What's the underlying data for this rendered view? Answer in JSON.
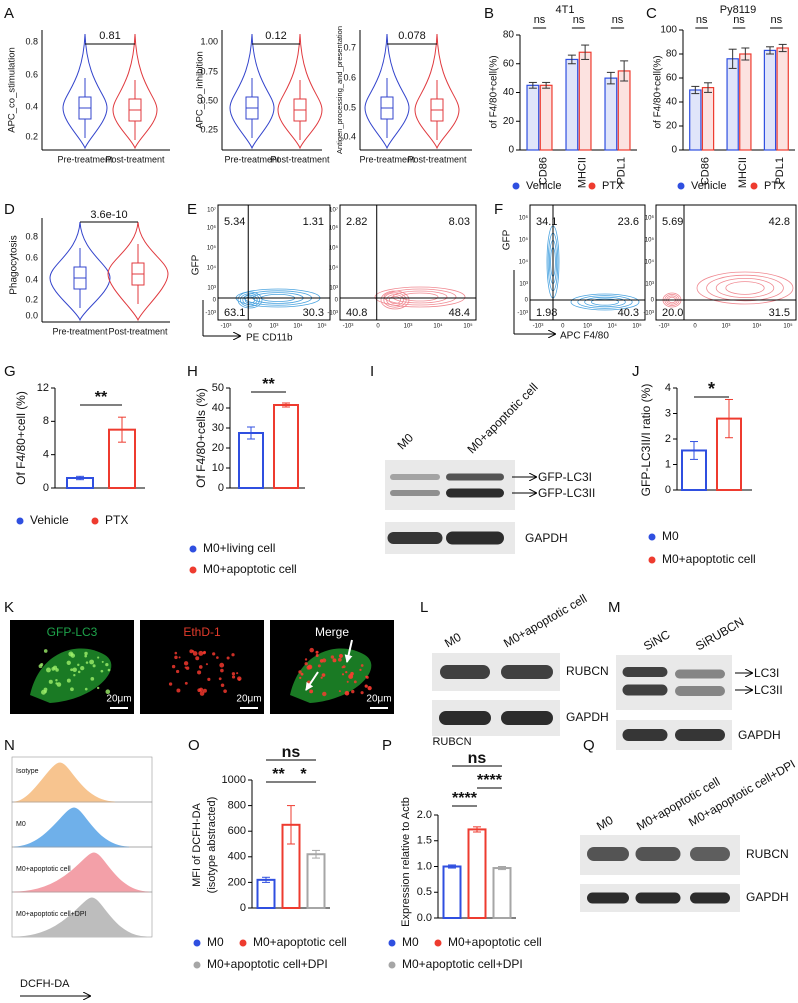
{
  "panel_a": {
    "letter": "A",
    "plots": [
      {
        "ylabel": "APC_co_stimulation",
        "yticks": [
          0.8,
          0.6,
          0.4,
          0.2
        ],
        "categories": [
          "Pre-treatment",
          "Post-treatment"
        ],
        "p_value": "0.81"
      },
      {
        "ylabel": "APC_co_inhibition",
        "yticks": [
          "1.00",
          "0.75",
          "0.50",
          "0.25"
        ],
        "categories": [
          "Pre-treatment",
          "Post-treatment"
        ],
        "p_value": "0.12"
      },
      {
        "ylabel": "Antigen_processing_and_presentation",
        "yticks": [
          0.7,
          0.6,
          0.5,
          0.4
        ],
        "categories": [
          "Pre-treatment",
          "Post-treatment"
        ],
        "p_value": "0.078"
      }
    ]
  },
  "panel_b": {
    "letter": "B",
    "title": "4T1",
    "ylabel": "of F4/80+cell(%)",
    "categories": [
      "CD86",
      "MHCII",
      "PDL1"
    ],
    "series": [
      {
        "name": "Vehicle",
        "color": "#2f4fe0",
        "values": [
          45,
          63,
          50
        ],
        "errors": [
          2,
          3,
          4
        ]
      },
      {
        "name": "PTX",
        "color": "#ee3b2f",
        "values": [
          45,
          68,
          55
        ],
        "errors": [
          2,
          5,
          7
        ]
      }
    ],
    "ylim": [
      0,
      80
    ],
    "yticks": [
      0,
      20,
      40,
      60,
      80
    ],
    "significance": [
      "ns",
      "ns",
      "ns"
    ]
  },
  "panel_c": {
    "letter": "C",
    "title": "Py8119",
    "ylabel": "of F4/80+cell(%)",
    "categories": [
      "CD86",
      "MHCII",
      "PDL1"
    ],
    "series": [
      {
        "name": "Vehicle",
        "color": "#2f4fe0",
        "values": [
          50,
          76,
          83
        ],
        "errors": [
          3,
          8,
          3
        ]
      },
      {
        "name": "PTX",
        "color": "#ee3b2f",
        "values": [
          52,
          80,
          85
        ],
        "errors": [
          4,
          5,
          3
        ]
      }
    ],
    "ylim": [
      0,
      100
    ],
    "yticks": [
      0,
      20,
      40,
      60,
      80,
      100
    ],
    "significance": [
      "ns",
      "ns",
      "ns"
    ]
  },
  "panel_d": {
    "letter": "D",
    "ylabel": "Phagocytosis",
    "yticks": [
      0.8,
      0.6,
      0.4,
      0.2,
      "0.0"
    ],
    "categories": [
      "Pre-treatment",
      "Post-treatment"
    ],
    "p_value": "3.6e-10"
  },
  "panel_e": {
    "letter": "E",
    "ylabel": "GFP",
    "xlabel": "PE CD11b",
    "yticks": [
      "10⁷",
      "10⁶",
      "10⁵",
      "10⁴",
      "10³",
      "0",
      "-10³"
    ],
    "xticks": [
      "-10³",
      "0",
      "10³",
      "10⁴",
      "10⁵"
    ],
    "plots": [
      {
        "quadrants": [
          5.34,
          1.31,
          63.1,
          30.3
        ]
      },
      {
        "quadrants": [
          2.82,
          8.03,
          40.8,
          48.4
        ]
      }
    ]
  },
  "panel_f": {
    "letter": "F",
    "ylabel": "GFP",
    "xlabel": "APC F4/80",
    "yticks": [
      "10⁶",
      "10⁵",
      "10⁴",
      "10³",
      "0",
      "-10³"
    ],
    "xticks": [
      "-10³",
      "0",
      "10³",
      "10⁴",
      "10⁵"
    ],
    "plots": [
      {
        "quadrants": [
          34.1,
          23.6,
          1.98,
          40.3
        ]
      },
      {
        "quadrants": [
          5.69,
          42.8,
          "20.0",
          31.5
        ]
      }
    ]
  },
  "panel_g": {
    "letter": "G",
    "ylabel": "Of F4/80+cell (%)",
    "categories": [
      "Vehicle",
      "PTX"
    ],
    "colors": [
      "#2f4fe0",
      "#ee3b2f"
    ],
    "values": [
      1.2,
      7.0
    ],
    "errors": [
      0.2,
      1.5
    ],
    "ylim": [
      0,
      12
    ],
    "yticks": [
      0,
      4,
      8,
      12
    ],
    "significance": [
      "**"
    ]
  },
  "panel_h": {
    "letter": "H",
    "ylabel": "Of F4/80+cells (%)",
    "categories": [
      "M0+living cell",
      "M0+apoptotic cell"
    ],
    "colors": [
      "#2f4fe0",
      "#ee3b2f"
    ],
    "values": [
      27.5,
      41.5
    ],
    "errors": [
      3,
      1
    ],
    "ylim": [
      0,
      50
    ],
    "yticks": [
      0,
      10,
      20,
      30,
      40,
      50
    ],
    "significance": [
      "**"
    ]
  },
  "panel_i": {
    "letter": "I",
    "lanes": [
      "M0",
      "M0+apoptotic cell"
    ],
    "bands": [
      "GFP-LC3I",
      "GFP-LC3II",
      "GAPDH"
    ]
  },
  "panel_j": {
    "letter": "J",
    "ylabel": "GFP-LC3II/I ratio (%)",
    "categories": [
      "M0",
      "M0+apoptotic cell"
    ],
    "colors": [
      "#2f4fe0",
      "#ee3b2f"
    ],
    "values": [
      1.55,
      2.8
    ],
    "errors": [
      0.35,
      0.75
    ],
    "ylim": [
      0,
      4
    ],
    "yticks": [
      0,
      1,
      2,
      3,
      4
    ],
    "significance": [
      "*"
    ]
  },
  "panel_k": {
    "letter": "K",
    "channels": [
      "GFP-LC3",
      "EthD-1",
      "Merge"
    ],
    "scale_bar": "20μm"
  },
  "panel_l": {
    "letter": "L",
    "lanes": [
      "M0",
      "M0+apoptotic cell"
    ],
    "bands": [
      "RUBCN",
      "GAPDH"
    ]
  },
  "panel_m": {
    "letter": "M",
    "lanes": [
      "SiNC",
      "SiRUBCN"
    ],
    "bands": [
      "LC3I",
      "LC3II",
      "GAPDH"
    ]
  },
  "panel_n": {
    "letter": "N",
    "tracks": [
      "Isotype",
      "M0",
      "M0+apoptotic cell",
      "M0+apoptotic cell+DPI"
    ],
    "xlabel": "DCFH-DA"
  },
  "panel_o": {
    "letter": "O",
    "ylabel": "MFI of DCFH-DA",
    "ylabel_2": "(isotype abstracted)",
    "categories": [
      "M0",
      "M0+apoptotic cell",
      "M0+apoptotic cell+DPI"
    ],
    "colors": [
      "#2f4fe0",
      "#ee3b2f",
      "#a6a6a6"
    ],
    "values": [
      220,
      650,
      420
    ],
    "errors": [
      20,
      150,
      30
    ],
    "ylim": [
      0,
      1000
    ],
    "yticks": [
      0,
      200,
      400,
      600,
      800,
      1000
    ],
    "significance": [
      "ns",
      "**",
      "*"
    ]
  },
  "panel_p": {
    "letter": "P",
    "title": "RUBCN",
    "ylabel": "Expression relative to Actb",
    "categories": [
      "M0",
      "M0+apoptotic cell",
      "M0+apoptotic cell+DPI"
    ],
    "colors": [
      "#2f4fe0",
      "#ee3b2f",
      "#a6a6a6"
    ],
    "values": [
      1.0,
      1.72,
      0.97
    ],
    "errors": [
      0.03,
      0.05,
      0.03
    ],
    "ylim": [
      0,
      2
    ],
    "yticks": [
      {
        "value": 0,
        "label": "0.0"
      },
      0.5,
      {
        "value": 1,
        "label": "1.0"
      },
      1.5,
      {
        "value": 2,
        "label": "2.0"
      }
    ],
    "significance": [
      "ns",
      "****",
      "****"
    ]
  },
  "panel_q": {
    "letter": "Q",
    "lanes": [
      "M0",
      "M0+apoptotic cell",
      "M0+apoptotic cell+DPI"
    ],
    "bands": [
      "RUBCN",
      "GAPDH"
    ]
  }
}
